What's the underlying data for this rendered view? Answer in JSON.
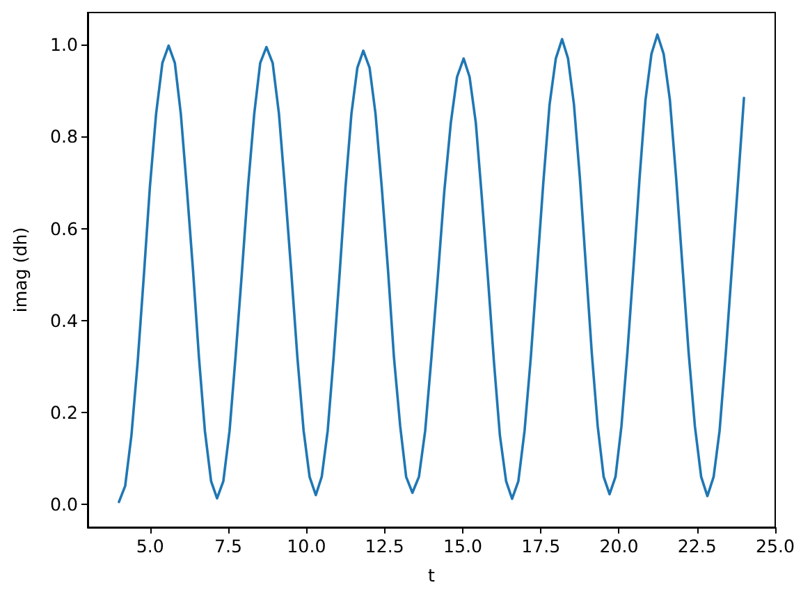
{
  "chart_data": {
    "type": "line",
    "xlabel": "t",
    "ylabel": "imag (dh)",
    "color": "#1f77b4",
    "marker": "none",
    "grid": false,
    "x": [
      4.0,
      4.2,
      4.4,
      4.6,
      4.8,
      4.99,
      5.19,
      5.39,
      5.59,
      5.79,
      5.98,
      6.17,
      6.37,
      6.56,
      6.75,
      6.95,
      7.14,
      7.34,
      7.54,
      7.73,
      7.93,
      8.13,
      8.33,
      8.52,
      8.72,
      8.92,
      9.12,
      9.31,
      9.51,
      9.71,
      9.91,
      10.1,
      10.3,
      10.49,
      10.68,
      10.87,
      11.06,
      11.25,
      11.44,
      11.63,
      11.82,
      12.02,
      12.21,
      12.41,
      12.61,
      12.8,
      13.0,
      13.19,
      13.39,
      13.6,
      13.8,
      14.0,
      14.21,
      14.41,
      14.62,
      14.82,
      15.03,
      15.22,
      15.42,
      15.61,
      15.81,
      16.0,
      16.19,
      16.39,
      16.58,
      16.78,
      16.98,
      17.18,
      17.38,
      17.58,
      17.78,
      17.98,
      18.18,
      18.37,
      18.56,
      18.75,
      18.94,
      19.13,
      19.32,
      19.51,
      19.7,
      19.89,
      20.08,
      20.27,
      20.47,
      20.66,
      20.85,
      21.04,
      21.23,
      21.43,
      21.63,
      21.83,
      22.03,
      22.23,
      22.43,
      22.63,
      22.83,
      23.03,
      23.22,
      23.42,
      23.62,
      23.82,
      24.0
    ],
    "values": [
      0.005,
      0.04,
      0.15,
      0.31,
      0.5,
      0.69,
      0.85,
      0.96,
      0.998,
      0.96,
      0.85,
      0.69,
      0.51,
      0.32,
      0.16,
      0.05,
      0.013,
      0.05,
      0.16,
      0.32,
      0.5,
      0.69,
      0.85,
      0.96,
      0.995,
      0.96,
      0.85,
      0.69,
      0.51,
      0.32,
      0.16,
      0.06,
      0.02,
      0.06,
      0.16,
      0.32,
      0.5,
      0.69,
      0.85,
      0.95,
      0.987,
      0.95,
      0.85,
      0.69,
      0.51,
      0.32,
      0.17,
      0.06,
      0.025,
      0.06,
      0.16,
      0.32,
      0.5,
      0.68,
      0.83,
      0.93,
      0.97,
      0.93,
      0.83,
      0.67,
      0.49,
      0.31,
      0.15,
      0.05,
      0.012,
      0.05,
      0.16,
      0.32,
      0.51,
      0.7,
      0.87,
      0.97,
      1.012,
      0.97,
      0.87,
      0.71,
      0.52,
      0.33,
      0.17,
      0.06,
      0.022,
      0.06,
      0.17,
      0.33,
      0.52,
      0.71,
      0.88,
      0.98,
      1.022,
      0.98,
      0.88,
      0.71,
      0.52,
      0.33,
      0.17,
      0.06,
      0.018,
      0.06,
      0.16,
      0.33,
      0.52,
      0.71,
      0.884
    ],
    "xlim": [
      3.0,
      25.0
    ],
    "xticks": [
      {
        "value": 5,
        "label": "5.0"
      },
      7.5,
      {
        "value": 10,
        "label": "10.0"
      },
      12.5,
      {
        "value": 15,
        "label": "15.0"
      },
      17.5,
      {
        "value": 20,
        "label": "20.0"
      },
      22.5,
      {
        "value": 25,
        "label": "25.0"
      }
    ],
    "ylim": [
      -0.05,
      1.07
    ],
    "yticks": [
      {
        "value": 0,
        "label": "0.0"
      },
      0.2,
      0.4,
      0.6,
      0.8,
      {
        "value": 1,
        "label": "1.0"
      }
    ]
  }
}
